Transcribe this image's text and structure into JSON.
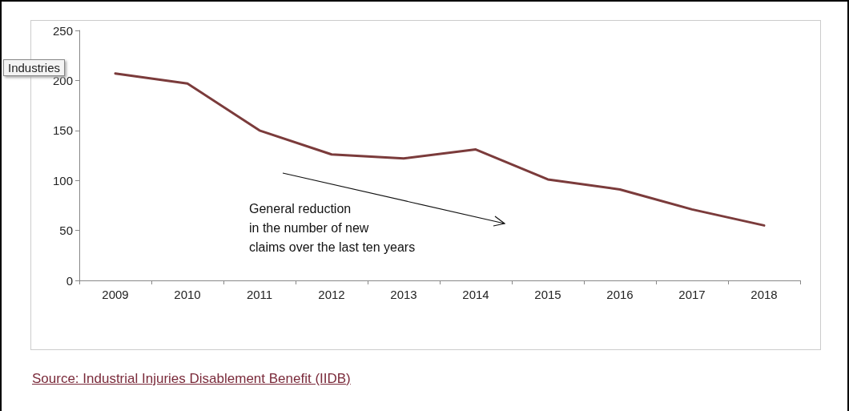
{
  "chart_data": {
    "type": "line",
    "categories": [
      "2009",
      "2010",
      "2011",
      "2012",
      "2013",
      "2014",
      "2015",
      "2016",
      "2017",
      "2018"
    ],
    "series": [
      {
        "color": "#7b3b3b",
        "values": [
          207,
          197,
          150,
          126,
          122,
          131,
          101,
          91,
          71,
          55
        ]
      }
    ],
    "ylim": [
      0,
      250
    ],
    "yticks": [
      0,
      50,
      100,
      150,
      200,
      250
    ],
    "grid": false,
    "marker": "none",
    "line_style": "solid",
    "annotations": [
      "Industries",
      "General reduction\nin the number of new\nclaims over the last ten years",
      "Source: Industrial Injuries Disablement Benefit (IIDB)"
    ]
  }
}
